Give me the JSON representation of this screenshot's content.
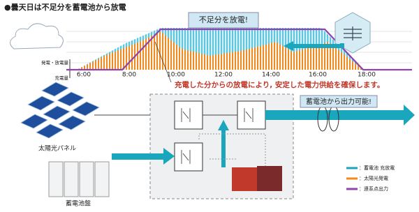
{
  "header": {
    "title": "●曇天日は不足分を蓄電池から放電"
  },
  "chart": {
    "callout": "不足分を放電!",
    "y_label_upper": "発電・放電量",
    "y_label_lower": "充電量",
    "times": [
      "6:00",
      "8:00",
      "10:00",
      "12:00",
      "14:00",
      "16:00",
      "18:00"
    ]
  },
  "message": "充電した分からの放電により, 安定した電力供給を確保します。",
  "output_callout": "蓄電池から出力可能!",
  "nodes": {
    "solar": "太陽光パネル",
    "battery": "蓄電池盤"
  },
  "legend": [
    "：蓄電池 充放電",
    "：太陽光発電",
    "：連系点出力"
  ]
}
